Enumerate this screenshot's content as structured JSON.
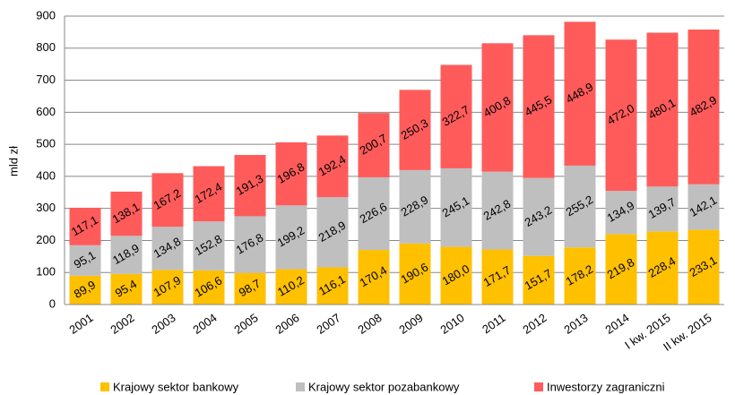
{
  "chart_data": {
    "type": "stacked_bar",
    "y_label": "mld zł",
    "categories": [
      "2001",
      "2002",
      "2003",
      "2004",
      "2005",
      "2006",
      "2007",
      "2008",
      "2009",
      "2010",
      "2011",
      "2012",
      "2013",
      "2014",
      "I kw. 2015",
      "II kw. 2015"
    ],
    "series": [
      {
        "name": "Krajowy sektor bankowy",
        "color": "#ffc000",
        "values": [
          89.9,
          95.4,
          107.9,
          106.6,
          98.7,
          110.2,
          116.1,
          170.4,
          190.6,
          180.0,
          171.7,
          151.7,
          178.2,
          219.8,
          228.4,
          233.1
        ],
        "value_labels": [
          "89,9",
          "95,4",
          "107,9",
          "106,6",
          "98,7",
          "110,2",
          "116,1",
          "170,4",
          "190,6",
          "180,0",
          "171,7",
          "151,7",
          "178,2",
          "219,8",
          "228,4",
          "233,1"
        ]
      },
      {
        "name": "Krajowy sektor pozabankowy",
        "color": "#bfbfbf",
        "values": [
          95.1,
          118.9,
          134.8,
          152.8,
          176.8,
          199.2,
          218.9,
          226.6,
          228.9,
          245.1,
          242.8,
          243.2,
          255.2,
          134.9,
          139.7,
          142.1
        ],
        "value_labels": [
          "95,1",
          "118,9",
          "134,8",
          "152,8",
          "176,8",
          "199,2",
          "218,9",
          "226,6",
          "228,9",
          "245,1",
          "242,8",
          "243,2",
          "255,2",
          "134,9",
          "139,7",
          "142,1"
        ]
      },
      {
        "name": "Inwestorzy zagraniczni",
        "color": "#ff5b5b",
        "values": [
          117.1,
          138.1,
          167.2,
          172.4,
          191.3,
          196.8,
          192.4,
          200.7,
          250.3,
          322.7,
          400.8,
          445.5,
          448.9,
          472.0,
          480.1,
          482.9
        ],
        "value_labels": [
          "117,1",
          "138,1",
          "167,2",
          "172,4",
          "191,3",
          "196,8",
          "192,4",
          "200,7",
          "250,3",
          "322,7",
          "400,8",
          "445,5",
          "448,9",
          "472,0",
          "480,1",
          "482,9"
        ]
      }
    ],
    "ylim": [
      0,
      900
    ],
    "yticks": [
      0,
      100,
      200,
      300,
      400,
      500,
      600,
      700,
      800,
      900
    ],
    "grid": true
  }
}
